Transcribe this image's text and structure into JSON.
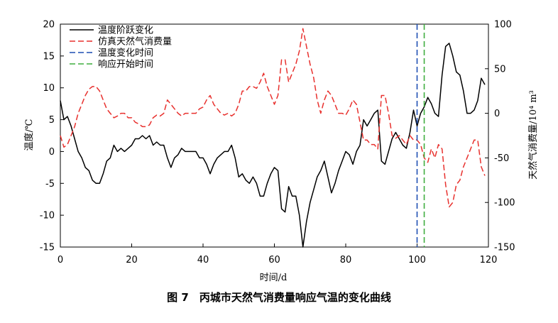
{
  "caption": "图 7　丙城市天然气消费量响应气温的变化曲线",
  "chart_data": {
    "type": "line",
    "xlabel": "时间/d",
    "ylabel": "温度/℃",
    "y2label": "天然气消费量/10⁴ m³",
    "xlim": [
      0,
      120
    ],
    "ylim": [
      -15,
      20
    ],
    "y2lim": [
      -150,
      100
    ],
    "xticks": [
      0,
      20,
      40,
      60,
      80,
      100,
      120
    ],
    "yticks": [
      -15,
      -10,
      -5,
      0,
      5,
      10,
      15,
      20
    ],
    "y2ticks": [
      -150,
      -100,
      -50,
      0,
      50,
      100
    ],
    "grid": false,
    "legend_position": "top-left",
    "series": [
      {
        "name": "温度阶跃变化",
        "axis": "left",
        "color": "#000000",
        "dash": "solid",
        "x": [
          0,
          1,
          2,
          3,
          4,
          5,
          6,
          7,
          8,
          9,
          10,
          11,
          12,
          13,
          14,
          15,
          16,
          17,
          18,
          19,
          20,
          21,
          22,
          23,
          24,
          25,
          26,
          27,
          28,
          29,
          30,
          31,
          32,
          33,
          34,
          35,
          36,
          37,
          38,
          39,
          40,
          41,
          42,
          43,
          44,
          45,
          46,
          47,
          48,
          49,
          50,
          51,
          52,
          53,
          54,
          55,
          56,
          57,
          58,
          59,
          60,
          61,
          62,
          63,
          64,
          65,
          66,
          67,
          68,
          69,
          70,
          71,
          72,
          73,
          74,
          75,
          76,
          77,
          78,
          79,
          80,
          81,
          82,
          83,
          84,
          85,
          86,
          87,
          88,
          89,
          90,
          91,
          92,
          93,
          94,
          95,
          96,
          97,
          98,
          99,
          100,
          101,
          102,
          103,
          104,
          105,
          106,
          107,
          108,
          109,
          110,
          111,
          112,
          113,
          114,
          115,
          116,
          117,
          118,
          119
        ],
        "values": [
          8,
          5,
          5.5,
          4,
          2,
          0,
          -1,
          -2.5,
          -3,
          -4.5,
          -5,
          -5,
          -3.5,
          -1.5,
          -1,
          1,
          0,
          0.5,
          0,
          0.5,
          1,
          2,
          2,
          2.5,
          2,
          2.5,
          1,
          1.5,
          1,
          1,
          -1,
          -2.5,
          -1,
          -0.5,
          0.5,
          0,
          0,
          0,
          0,
          -1,
          -1,
          -2,
          -3.5,
          -2,
          -1,
          -0.5,
          0,
          0,
          1,
          -1,
          -4,
          -3.5,
          -4.5,
          -5,
          -4,
          -5,
          -7,
          -7,
          -5,
          -3.5,
          -2.5,
          -3,
          -9,
          -9.5,
          -5.5,
          -7,
          -7,
          -10,
          -15,
          -11,
          -8,
          -6,
          -4,
          -3,
          -1.5,
          -4,
          -6.5,
          -5,
          -3,
          -1.5,
          0,
          -0.5,
          -2,
          0,
          1,
          5,
          4,
          5,
          6,
          6.5,
          -1.5,
          -2,
          0,
          2,
          3,
          2,
          1,
          0.5,
          3,
          6.5,
          4,
          6,
          7,
          8.5,
          7.5,
          6,
          5.5,
          12,
          16.5,
          17,
          15,
          12.5,
          12,
          9.5,
          6,
          6,
          6.5,
          8,
          11.5,
          10.5
        ]
      },
      {
        "name": "仿真天然气消费量",
        "axis": "right",
        "color": "#e8312e",
        "dash": "dashed",
        "x": [
          0,
          1,
          2,
          3,
          4,
          5,
          6,
          7,
          8,
          9,
          10,
          11,
          12,
          13,
          14,
          15,
          16,
          17,
          18,
          19,
          20,
          21,
          22,
          23,
          24,
          25,
          26,
          27,
          28,
          29,
          30,
          31,
          32,
          33,
          34,
          35,
          36,
          37,
          38,
          39,
          40,
          41,
          42,
          43,
          44,
          45,
          46,
          47,
          48,
          49,
          50,
          51,
          52,
          53,
          54,
          55,
          56,
          57,
          58,
          59,
          60,
          61,
          62,
          63,
          64,
          65,
          66,
          67,
          68,
          69,
          70,
          71,
          72,
          73,
          74,
          75,
          76,
          77,
          78,
          79,
          80,
          81,
          82,
          83,
          84,
          85,
          86,
          87,
          88,
          89,
          90,
          91,
          92,
          93,
          94,
          95,
          96,
          97,
          98,
          99,
          100,
          101,
          102,
          103,
          104,
          105,
          106,
          107,
          108,
          109,
          110,
          111,
          112,
          113,
          114,
          115,
          116,
          117,
          118,
          119
        ],
        "values": [
          -25,
          -38,
          -35,
          -25,
          -15,
          0,
          10,
          20,
          27,
          30,
          30,
          25,
          15,
          5,
          0,
          -5,
          -3,
          0,
          0,
          -5,
          -5,
          -10,
          -12,
          -15,
          -15,
          -13,
          -5,
          -2,
          -3,
          0,
          15,
          10,
          5,
          0,
          -3,
          0,
          0,
          0,
          0,
          5,
          7,
          15,
          20,
          10,
          5,
          0,
          -2,
          0,
          -3,
          0,
          10,
          25,
          25,
          30,
          30,
          28,
          35,
          45,
          30,
          20,
          10,
          20,
          60,
          60,
          35,
          45,
          55,
          70,
          95,
          75,
          55,
          40,
          15,
          0,
          15,
          25,
          20,
          10,
          0,
          0,
          -2,
          5,
          15,
          10,
          -10,
          -30,
          -30,
          -35,
          -35,
          -40,
          20,
          20,
          0,
          -25,
          -28,
          -25,
          -30,
          -35,
          -25,
          -30,
          -30,
          -35,
          -50,
          -55,
          -40,
          -50,
          -35,
          -40,
          -80,
          -105,
          -100,
          -80,
          -75,
          -60,
          -50,
          -40,
          -30,
          -30,
          -60,
          -70
        ]
      },
      {
        "name": "温度变化时间",
        "axis": "marker",
        "color": "#1f4fb3",
        "dash": "dashed",
        "x_at": 100
      },
      {
        "name": "响应开始时间",
        "axis": "marker",
        "color": "#3fae3f",
        "dash": "dashed",
        "x_at": 102
      }
    ]
  }
}
